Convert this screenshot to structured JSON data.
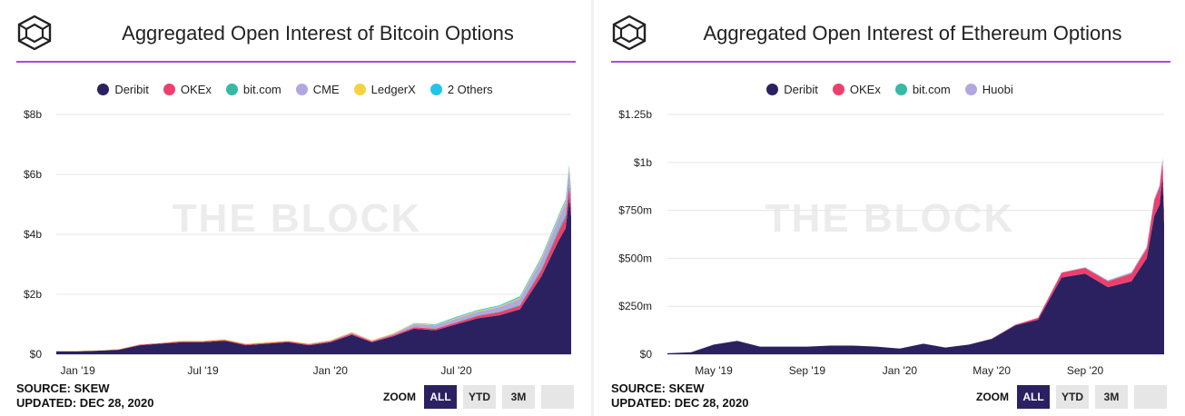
{
  "colors": {
    "deribit": "#2b2161",
    "okex": "#ee3f6c",
    "bitcom": "#36b9a6",
    "cme": "#b3a7e0",
    "ledgerx": "#f5d33f",
    "others": "#20c5ea",
    "accent": "#a24ee0"
  },
  "watermark": "THE BLOCK",
  "chart_data": [
    {
      "type": "area",
      "title": "Aggregated Open Interest of Bitcoin Options",
      "source": "SOURCE: SKEW",
      "updated": "UPDATED: DEC 28, 2020",
      "zoom": {
        "label": "ZOOM",
        "buttons": [
          "ALL",
          "YTD",
          "3M"
        ],
        "active": "ALL"
      },
      "y_ticks": [
        "$0",
        "$2b",
        "$4b",
        "$6b",
        "$8b"
      ],
      "ylim": [
        0,
        8
      ],
      "x_ticks": [
        {
          "label": "Jan '19",
          "x": "2019-01"
        },
        {
          "label": "Jul '19",
          "x": "2019-07"
        },
        {
          "label": "Jan '20",
          "x": "2020-01"
        },
        {
          "label": "Jul '20",
          "x": "2020-07"
        }
      ],
      "x": [
        "2018-12",
        "2019-01",
        "2019-02",
        "2019-03",
        "2019-04",
        "2019-05",
        "2019-06",
        "2019-07",
        "2019-08",
        "2019-09",
        "2019-10",
        "2019-11",
        "2019-12",
        "2020-01",
        "2020-02",
        "2020-03",
        "2020-04",
        "2020-05",
        "2020-06",
        "2020-07",
        "2020-08",
        "2020-09",
        "2020-10",
        "2020-11",
        "2020-12-10",
        "2020-12-20",
        "2020-12-25",
        "2020-12-28"
      ],
      "series": [
        {
          "name": "Deribit",
          "values": [
            0.1,
            0.1,
            0.12,
            0.15,
            0.3,
            0.35,
            0.4,
            0.4,
            0.45,
            0.3,
            0.35,
            0.4,
            0.3,
            0.4,
            0.65,
            0.4,
            0.6,
            0.85,
            0.8,
            1.0,
            1.2,
            1.3,
            1.5,
            2.6,
            3.8,
            4.2,
            5.2,
            4.6
          ]
        },
        {
          "name": "OKEx",
          "values": [
            0,
            0,
            0,
            0.01,
            0.02,
            0.02,
            0.03,
            0.03,
            0.03,
            0.03,
            0.03,
            0.03,
            0.03,
            0.03,
            0.04,
            0.03,
            0.04,
            0.05,
            0.05,
            0.06,
            0.08,
            0.1,
            0.12,
            0.2,
            0.3,
            0.35,
            0.4,
            0.3
          ]
        },
        {
          "name": "bit.com",
          "values": [
            0,
            0,
            0,
            0,
            0,
            0,
            0,
            0,
            0,
            0,
            0,
            0,
            0,
            0,
            0,
            0,
            0,
            0,
            0.01,
            0.01,
            0.02,
            0.02,
            0.03,
            0.05,
            0.08,
            0.1,
            0.12,
            0.1
          ]
        },
        {
          "name": "CME",
          "values": [
            0,
            0,
            0,
            0,
            0,
            0,
            0,
            0,
            0,
            0,
            0,
            0,
            0.01,
            0.02,
            0.03,
            0.02,
            0.04,
            0.1,
            0.1,
            0.12,
            0.12,
            0.15,
            0.2,
            0.3,
            0.35,
            0.4,
            0.45,
            0.4
          ]
        },
        {
          "name": "LedgerX",
          "values": [
            0.01,
            0.01,
            0.01,
            0.01,
            0.01,
            0.01,
            0.02,
            0.02,
            0.02,
            0.02,
            0.02,
            0.02,
            0.02,
            0.02,
            0.02,
            0.02,
            0.02,
            0.02,
            0.02,
            0.03,
            0.03,
            0.03,
            0.04,
            0.05,
            0.06,
            0.06,
            0.07,
            0.06
          ]
        },
        {
          "name": "2 Others",
          "values": [
            0,
            0,
            0,
            0,
            0,
            0,
            0,
            0,
            0,
            0,
            0,
            0,
            0,
            0,
            0,
            0,
            0,
            0.02,
            0.02,
            0.03,
            0.03,
            0.03,
            0.04,
            0.05,
            0.06,
            0.06,
            0.06,
            0.05
          ]
        }
      ]
    },
    {
      "type": "area",
      "title": "Aggregated Open Interest of Ethereum Options",
      "source": "SOURCE: SKEW",
      "updated": "UPDATED: DEC 28, 2020",
      "zoom": {
        "label": "ZOOM",
        "buttons": [
          "ALL",
          "YTD",
          "3M"
        ],
        "active": "ALL"
      },
      "y_ticks": [
        "$0",
        "$250m",
        "$500m",
        "$750m",
        "$1b",
        "$1.25b"
      ],
      "ylim": [
        0,
        1250
      ],
      "x_ticks": [
        {
          "label": "May '19",
          "x": "2019-05"
        },
        {
          "label": "Sep '19",
          "x": "2019-09"
        },
        {
          "label": "Jan '20",
          "x": "2020-01"
        },
        {
          "label": "May '20",
          "x": "2020-05"
        },
        {
          "label": "Sep '20",
          "x": "2020-09"
        }
      ],
      "x": [
        "2019-03",
        "2019-04",
        "2019-05",
        "2019-06",
        "2019-07",
        "2019-08",
        "2019-09",
        "2019-10",
        "2019-11",
        "2019-12",
        "2020-01",
        "2020-02",
        "2020-03",
        "2020-04",
        "2020-05",
        "2020-06",
        "2020-07",
        "2020-08",
        "2020-09",
        "2020-10",
        "2020-11",
        "2020-12-05",
        "2020-12-15",
        "2020-12-22",
        "2020-12-26",
        "2020-12-28"
      ],
      "series": [
        {
          "name": "Deribit",
          "values": [
            5,
            10,
            50,
            70,
            40,
            40,
            40,
            45,
            45,
            40,
            30,
            55,
            35,
            50,
            80,
            150,
            180,
            400,
            420,
            350,
            380,
            500,
            720,
            780,
            920,
            680
          ]
        },
        {
          "name": "OKEx",
          "values": [
            0,
            0,
            0,
            0,
            0,
            0,
            0,
            0,
            0,
            0,
            0,
            0,
            0,
            0,
            1,
            4,
            10,
            25,
            30,
            30,
            40,
            50,
            80,
            90,
            90,
            60
          ]
        },
        {
          "name": "bit.com",
          "values": [
            0,
            0,
            0,
            0,
            0,
            0,
            0,
            0,
            0,
            0,
            0,
            0,
            0,
            0,
            0,
            0,
            0,
            0,
            1,
            2,
            2,
            3,
            3,
            4,
            5,
            4
          ]
        },
        {
          "name": "Huobi",
          "values": [
            0,
            0,
            0,
            0,
            0,
            0,
            0,
            0,
            0,
            0,
            0,
            0,
            0,
            0,
            0,
            0,
            1,
            2,
            3,
            4,
            5,
            6,
            7,
            8,
            8,
            6
          ]
        }
      ]
    }
  ]
}
